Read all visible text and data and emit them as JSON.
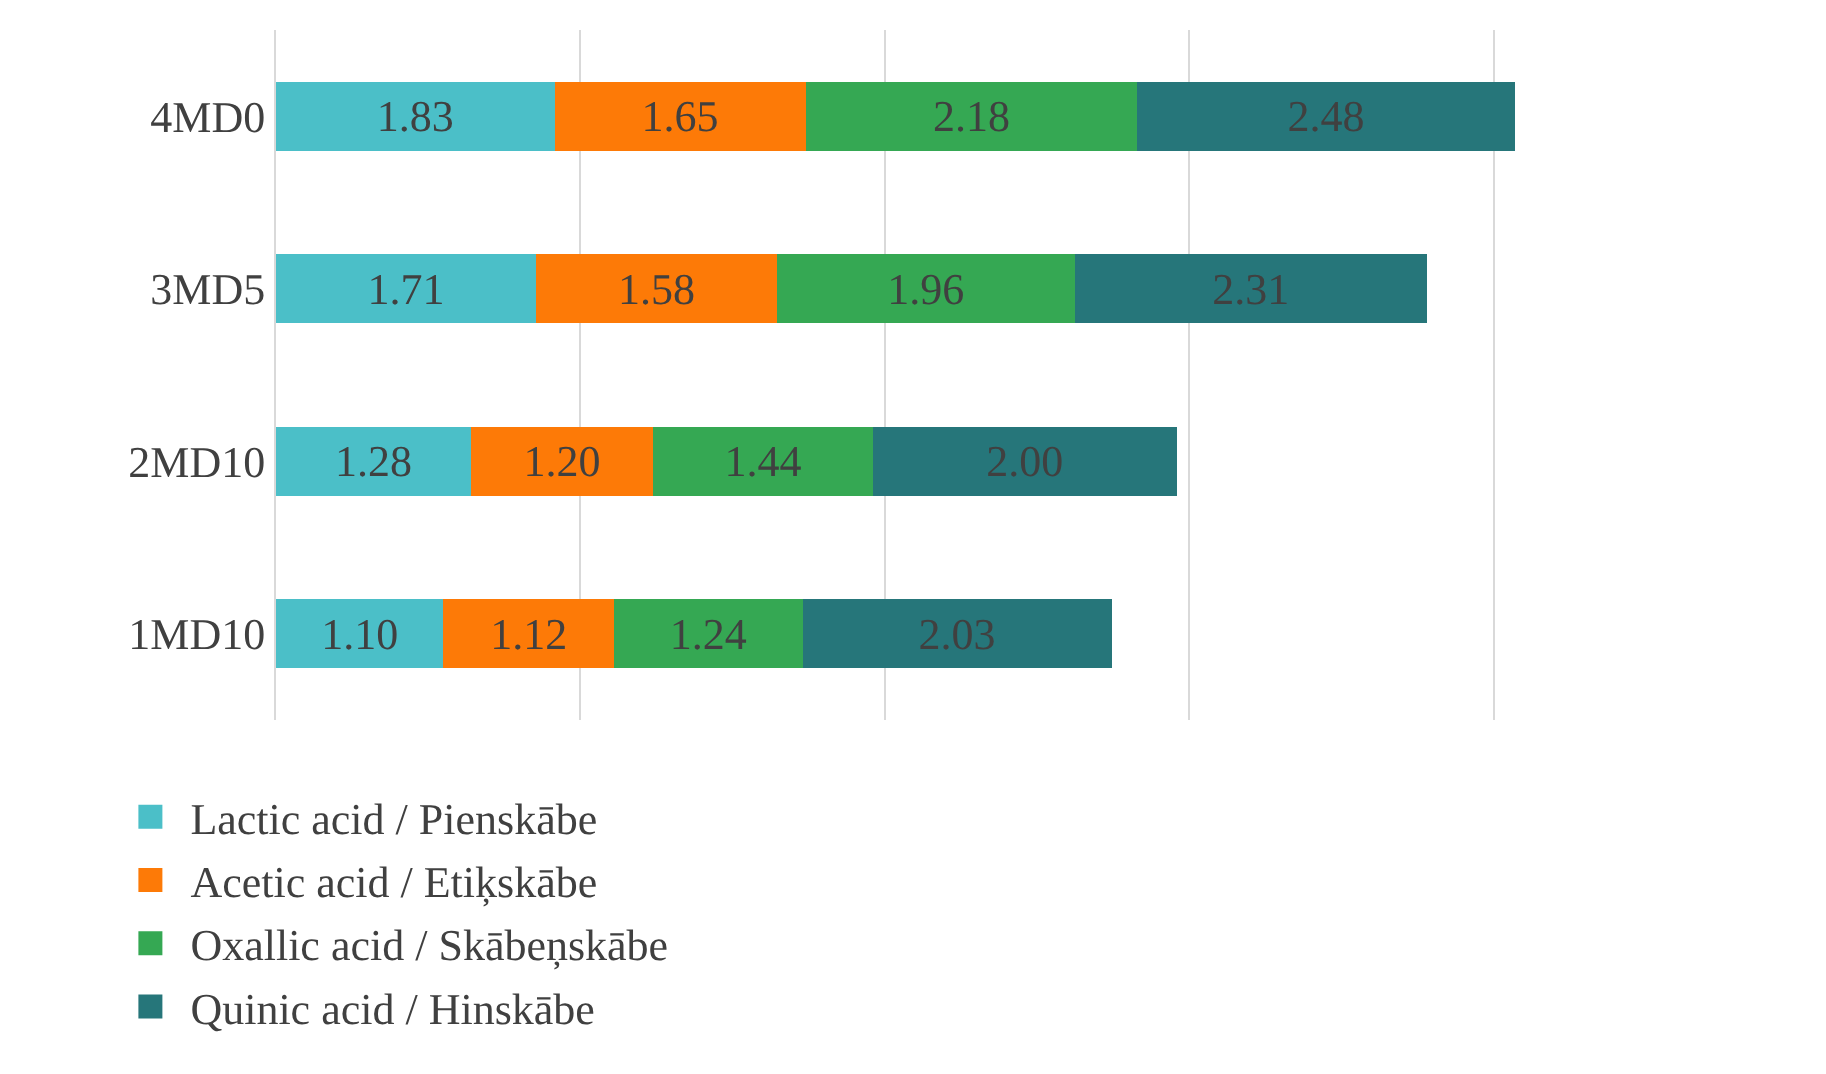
{
  "chart_data": {
    "type": "bar",
    "orientation": "horizontal",
    "stacked": true,
    "categories": [
      "4MD0",
      "3MD5",
      "2MD10",
      "1MD10"
    ],
    "series": [
      {
        "name": "Lactic acid / Pienskābe",
        "color": "#4bbfc8",
        "values": [
          1.83,
          1.71,
          1.28,
          1.1
        ],
        "value_labels": [
          "1.83",
          "1.71",
          "1.28",
          "1.10"
        ]
      },
      {
        "name": "Acetic acid / Etiķskābe",
        "color": "#fd7a07",
        "values": [
          1.65,
          1.58,
          1.2,
          1.12
        ],
        "value_labels": [
          "1.65",
          "1.58",
          "1.20",
          "1.12"
        ]
      },
      {
        "name": "Oxallic acid / Skābeņskābe",
        "color": "#35a853",
        "values": [
          2.18,
          1.96,
          1.44,
          1.24
        ],
        "value_labels": [
          "2.18",
          "1.96",
          "1.44",
          "1.24"
        ]
      },
      {
        "name": "Quinic acid / Hinskābe",
        "color": "#26767a",
        "values": [
          2.48,
          2.31,
          2.0,
          2.03
        ],
        "value_labels": [
          "2.48",
          "2.31",
          "2.00",
          "2.03"
        ]
      }
    ],
    "xticks": [
      {
        "value": 0,
        "label": null
      },
      {
        "value": 2,
        "label": null
      },
      {
        "value": 4,
        "label": null
      },
      {
        "value": 6,
        "label": null
      },
      {
        "value": 8,
        "label": null
      }
    ],
    "grid": "x",
    "legend": "bottom"
  }
}
